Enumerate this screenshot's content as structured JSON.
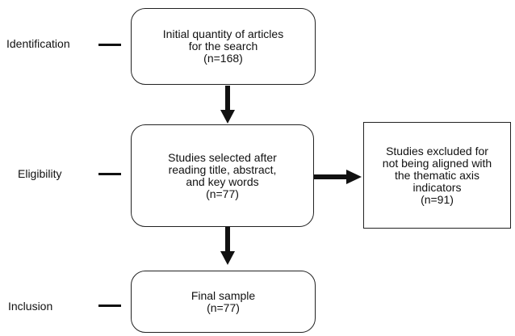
{
  "stages": {
    "identification": "Identification",
    "eligibility": "Eligibility",
    "inclusion": "Inclusion"
  },
  "boxes": {
    "initial": {
      "lines": [
        "Initial quantity of articles",
        "for the search",
        "(n=168)"
      ]
    },
    "selected": {
      "lines": [
        "Studies selected after",
        "reading title, abstract,",
        "and key words",
        "(n=77)"
      ]
    },
    "excluded": {
      "lines": [
        "Studies excluded for",
        "not being aligned with",
        "the thematic axis",
        "indicators",
        "(n=91)"
      ]
    },
    "final": {
      "lines": [
        "Final sample",
        "(n=77)"
      ]
    }
  },
  "colors": {
    "line": "#111111",
    "border": "#222222",
    "background": "#ffffff"
  }
}
